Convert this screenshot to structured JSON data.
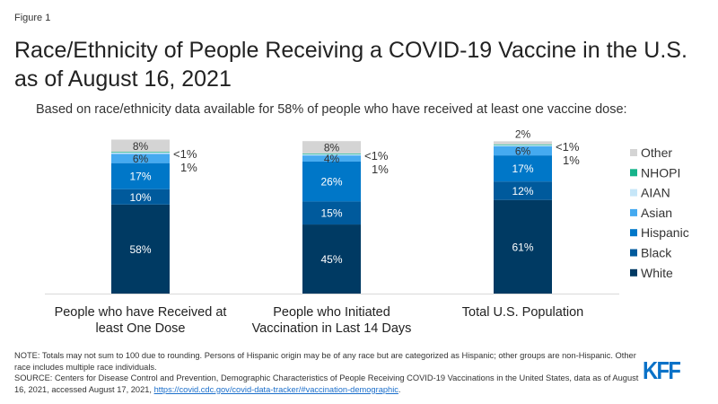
{
  "figure_label": "Figure 1",
  "chart_data": {
    "type": "bar",
    "stacked": true,
    "title": "Race/Ethnicity of People Receiving a COVID-19 Vaccine in the U.S. as of August 16, 2021",
    "subtitle": "Based on race/ethnicity data available for 58% of people who have received at least one vaccine dose:",
    "categories": [
      "People who have Received at least One Dose",
      "People who Initiated Vaccination in Last 14 Days",
      "Total U.S. Population"
    ],
    "category_lines": [
      [
        "People who have Received at",
        "least One Dose"
      ],
      [
        "People who Initiated",
        "Vaccination in Last 14 Days"
      ],
      [
        "Total U.S. Population"
      ]
    ],
    "ylim": [
      0,
      100
    ],
    "legend_position": "right",
    "series": [
      {
        "name": "White",
        "color": "#003a63",
        "values": [
          58,
          45,
          61
        ],
        "labels": [
          "58%",
          "45%",
          "61%"
        ]
      },
      {
        "name": "Black",
        "color": "#005a9c",
        "values": [
          10,
          15,
          12
        ],
        "labels": [
          "10%",
          "15%",
          "12%"
        ]
      },
      {
        "name": "Hispanic",
        "color": "#0077c8",
        "values": [
          17,
          26,
          17
        ],
        "labels": [
          "17%",
          "26%",
          "17%"
        ]
      },
      {
        "name": "Asian",
        "color": "#45aaf0",
        "values": [
          6,
          4,
          6
        ],
        "labels": [
          "6%",
          "4%",
          "6%"
        ]
      },
      {
        "name": "AIAN",
        "color": "#c6e6f8",
        "values": [
          1,
          1,
          1
        ],
        "labels": [
          "1%",
          "1%",
          "1%"
        ]
      },
      {
        "name": "NHOPI",
        "color": "#16b38a",
        "values": [
          0.3,
          0.3,
          0.2
        ],
        "labels": [
          "<1%",
          "<1%",
          "<1%"
        ]
      },
      {
        "name": "Other",
        "color": "#d4d4d4",
        "values": [
          8,
          8,
          2
        ],
        "labels": [
          "8%",
          "8%",
          "2%"
        ]
      }
    ]
  },
  "note": "NOTE: Totals may not sum to 100 due to rounding. Persons of Hispanic origin may be of any race but are categorized as Hispanic; other groups are non-Hispanic. Other race includes multiple race individuals.",
  "source": "SOURCE: Centers for Disease Control and Prevention, Demographic Characteristics of People Receiving COVID-19 Vaccinations in the United States, data as of August 16, 2021, accessed August 17, 2021, ",
  "source_link": "https://covid.cdc.gov/covid-data-tracker/#vaccination-demographic",
  "logo": "KFF"
}
